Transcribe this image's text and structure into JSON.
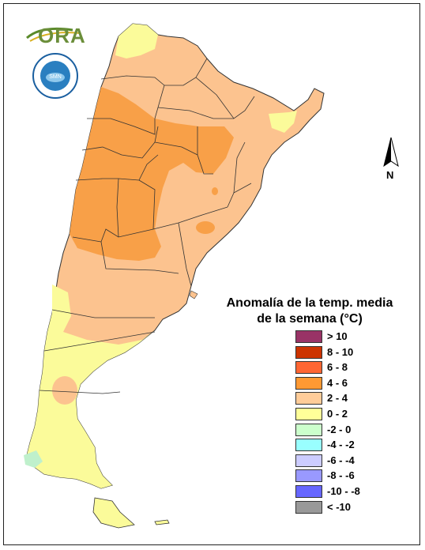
{
  "logos": {
    "ora": "ORA",
    "smn_ring_text": "SERVICIO METEOROLOGICO NACIONAL · ARGENTINA",
    "smn_center": "SMN"
  },
  "north_arrow": {
    "label": "N"
  },
  "legend": {
    "title_line1": "Anomalía de la temp. media",
    "title_line2": "de la semana (°C)",
    "items": [
      {
        "label": "> 10",
        "color": "#993366"
      },
      {
        "label": "8 - 10",
        "color": "#cc3300"
      },
      {
        "label": "6 - 8",
        "color": "#ff6633"
      },
      {
        "label": "4 - 6",
        "color": "#ff9933"
      },
      {
        "label": "2 - 4",
        "color": "#ffcc99"
      },
      {
        "label": "0 - 2",
        "color": "#ffff99"
      },
      {
        "label": "-2 - 0",
        "color": "#ccffcc"
      },
      {
        "label": "-4 - -2",
        "color": "#99ffff"
      },
      {
        "label": "-6 - -4",
        "color": "#ccccff"
      },
      {
        "label": "-8 - -6",
        "color": "#9999ff"
      },
      {
        "label": "-10 - -8",
        "color": "#6666ff"
      },
      {
        "label": "< -10",
        "color": "#999999"
      }
    ]
  },
  "map_colors": {
    "warm_2_4": "#fcc38f",
    "warm_4_6": "#f8a048",
    "warm_0_2": "#fbfb9a",
    "cold_m2_0": "#bff0cc",
    "outline": "#333333"
  }
}
